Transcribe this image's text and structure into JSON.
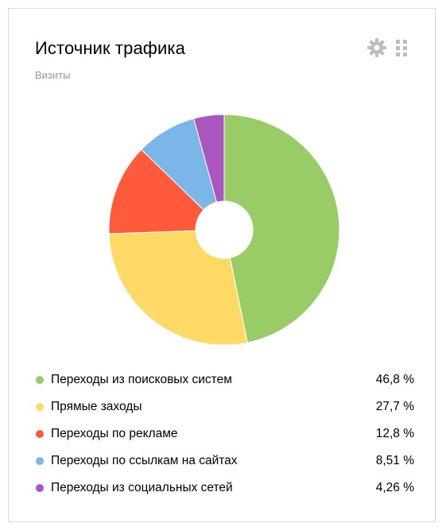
{
  "widget": {
    "title": "Источник трафика",
    "subtitle": "Визиты",
    "settings_icon": "gear-icon",
    "drag_icon": "drag-grip-icon"
  },
  "chart_data": {
    "type": "pie",
    "donut": true,
    "categories": [
      "Переходы из поисковых систем",
      "Прямые заходы",
      "Переходы по рекламе",
      "Переходы по ссылкам на сайтах",
      "Переходы из социальных сетей"
    ],
    "values": [
      46.8,
      27.7,
      12.8,
      8.51,
      4.26
    ],
    "labels": [
      "46,8 %",
      "27,7 %",
      "12,8 %",
      "8,51 %",
      "4,26 %"
    ],
    "colors": [
      "#99cc66",
      "#ffd966",
      "#ff5a3c",
      "#7ab6e8",
      "#a957bf"
    ],
    "legend_position": "bottom"
  }
}
